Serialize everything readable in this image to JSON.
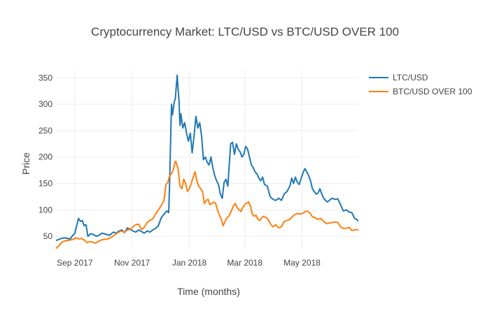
{
  "chart_data": {
    "type": "line",
    "title": "Cryptocurrency Market: LTC/USD vs BTC/USD OVER 100",
    "xlabel": "Time (months)",
    "ylabel": "Price",
    "x_range": [
      "2017-08-12",
      "2018-06-30"
    ],
    "ylim": [
      25,
      365
    ],
    "x_ticks": [
      {
        "date": "2017-09-01",
        "label": "Sep 2017"
      },
      {
        "date": "2017-11-01",
        "label": "Nov 2017"
      },
      {
        "date": "2018-01-01",
        "label": "Jan 2018"
      },
      {
        "date": "2018-03-01",
        "label": "Mar 2018"
      },
      {
        "date": "2018-05-01",
        "label": "May 2018"
      }
    ],
    "y_ticks": [
      50,
      100,
      150,
      200,
      250,
      300,
      350
    ],
    "grid": true,
    "legend_position": "top-right",
    "series": [
      {
        "name": "LTC/USD",
        "color": "#1f77b4",
        "points": [
          [
            "2017-08-12",
            42
          ],
          [
            "2017-08-15",
            44
          ],
          [
            "2017-08-18",
            46
          ],
          [
            "2017-08-21",
            47
          ],
          [
            "2017-08-24",
            46
          ],
          [
            "2017-08-27",
            45
          ],
          [
            "2017-08-30",
            52
          ],
          [
            "2017-09-01",
            55
          ],
          [
            "2017-09-03",
            70
          ],
          [
            "2017-09-05",
            84
          ],
          [
            "2017-09-07",
            78
          ],
          [
            "2017-09-09",
            80
          ],
          [
            "2017-09-11",
            70
          ],
          [
            "2017-09-13",
            72
          ],
          [
            "2017-09-15",
            50
          ],
          [
            "2017-09-18",
            55
          ],
          [
            "2017-09-21",
            53
          ],
          [
            "2017-09-24",
            50
          ],
          [
            "2017-09-27",
            52
          ],
          [
            "2017-09-30",
            56
          ],
          [
            "2017-10-04",
            54
          ],
          [
            "2017-10-08",
            52
          ],
          [
            "2017-10-12",
            58
          ],
          [
            "2017-10-15",
            56
          ],
          [
            "2017-10-18",
            60
          ],
          [
            "2017-10-21",
            62
          ],
          [
            "2017-10-24",
            57
          ],
          [
            "2017-10-27",
            66
          ],
          [
            "2017-10-30",
            63
          ],
          [
            "2017-11-02",
            60
          ],
          [
            "2017-11-05",
            58
          ],
          [
            "2017-11-08",
            62
          ],
          [
            "2017-11-11",
            59
          ],
          [
            "2017-11-14",
            56
          ],
          [
            "2017-11-17",
            60
          ],
          [
            "2017-11-20",
            58
          ],
          [
            "2017-11-23",
            62
          ],
          [
            "2017-11-26",
            65
          ],
          [
            "2017-11-29",
            70
          ],
          [
            "2017-12-02",
            85
          ],
          [
            "2017-12-05",
            92
          ],
          [
            "2017-12-08",
            98
          ],
          [
            "2017-12-10",
            95
          ],
          [
            "2017-12-11",
            150
          ],
          [
            "2017-12-12",
            230
          ],
          [
            "2017-12-13",
            300
          ],
          [
            "2017-12-14",
            280
          ],
          [
            "2017-12-16",
            305
          ],
          [
            "2017-12-17",
            310
          ],
          [
            "2017-12-19",
            355
          ],
          [
            "2017-12-20",
            330
          ],
          [
            "2017-12-21",
            305
          ],
          [
            "2017-12-22",
            260
          ],
          [
            "2017-12-23",
            282
          ],
          [
            "2017-12-25",
            255
          ],
          [
            "2017-12-27",
            265
          ],
          [
            "2017-12-29",
            245
          ],
          [
            "2017-12-31",
            230
          ],
          [
            "2018-01-02",
            245
          ],
          [
            "2018-01-04",
            208
          ],
          [
            "2018-01-06",
            240
          ],
          [
            "2018-01-08",
            277
          ],
          [
            "2018-01-10",
            255
          ],
          [
            "2018-01-12",
            265
          ],
          [
            "2018-01-14",
            240
          ],
          [
            "2018-01-16",
            195
          ],
          [
            "2018-01-18",
            200
          ],
          [
            "2018-01-20",
            190
          ],
          [
            "2018-01-22",
            185
          ],
          [
            "2018-01-24",
            200
          ],
          [
            "2018-01-26",
            180
          ],
          [
            "2018-01-28",
            165
          ],
          [
            "2018-01-30",
            155
          ],
          [
            "2018-02-01",
            148
          ],
          [
            "2018-02-03",
            130
          ],
          [
            "2018-02-05",
            122
          ],
          [
            "2018-02-07",
            152
          ],
          [
            "2018-02-09",
            158
          ],
          [
            "2018-02-11",
            145
          ],
          [
            "2018-02-14",
            225
          ],
          [
            "2018-02-16",
            228
          ],
          [
            "2018-02-18",
            205
          ],
          [
            "2018-02-20",
            225
          ],
          [
            "2018-02-22",
            215
          ],
          [
            "2018-02-24",
            210
          ],
          [
            "2018-02-26",
            200
          ],
          [
            "2018-02-28",
            205
          ],
          [
            "2018-03-02",
            220
          ],
          [
            "2018-03-04",
            215
          ],
          [
            "2018-03-06",
            200
          ],
          [
            "2018-03-08",
            185
          ],
          [
            "2018-03-10",
            180
          ],
          [
            "2018-03-12",
            172
          ],
          [
            "2018-03-14",
            168
          ],
          [
            "2018-03-16",
            160
          ],
          [
            "2018-03-18",
            155
          ],
          [
            "2018-03-20",
            162
          ],
          [
            "2018-03-22",
            148
          ],
          [
            "2018-03-25",
            145
          ],
          [
            "2018-03-28",
            125
          ],
          [
            "2018-03-31",
            120
          ],
          [
            "2018-04-03",
            118
          ],
          [
            "2018-04-06",
            122
          ],
          [
            "2018-04-09",
            118
          ],
          [
            "2018-04-12",
            130
          ],
          [
            "2018-04-15",
            135
          ],
          [
            "2018-04-18",
            145
          ],
          [
            "2018-04-20",
            160
          ],
          [
            "2018-04-22",
            150
          ],
          [
            "2018-04-24",
            162
          ],
          [
            "2018-04-26",
            152
          ],
          [
            "2018-04-28",
            148
          ],
          [
            "2018-04-30",
            160
          ],
          [
            "2018-05-02",
            170
          ],
          [
            "2018-05-04",
            178
          ],
          [
            "2018-05-06",
            172
          ],
          [
            "2018-05-08",
            165
          ],
          [
            "2018-05-10",
            155
          ],
          [
            "2018-05-12",
            140
          ],
          [
            "2018-05-14",
            135
          ],
          [
            "2018-05-16",
            130
          ],
          [
            "2018-05-18",
            132
          ],
          [
            "2018-05-20",
            140
          ],
          [
            "2018-05-22",
            130
          ],
          [
            "2018-05-24",
            122
          ],
          [
            "2018-05-26",
            118
          ],
          [
            "2018-05-28",
            115
          ],
          [
            "2018-05-30",
            118
          ],
          [
            "2018-06-02",
            122
          ],
          [
            "2018-06-05",
            120
          ],
          [
            "2018-06-08",
            121
          ],
          [
            "2018-06-11",
            110
          ],
          [
            "2018-06-14",
            98
          ],
          [
            "2018-06-17",
            100
          ],
          [
            "2018-06-20",
            96
          ],
          [
            "2018-06-23",
            95
          ],
          [
            "2018-06-26",
            84
          ],
          [
            "2018-06-28",
            82
          ],
          [
            "2018-06-30",
            79
          ]
        ]
      },
      {
        "name": "BTC/USD OVER 100",
        "color": "#ff7f0e",
        "points": [
          [
            "2017-08-12",
            27
          ],
          [
            "2017-08-15",
            32
          ],
          [
            "2017-08-18",
            38
          ],
          [
            "2017-08-21",
            41
          ],
          [
            "2017-08-24",
            42
          ],
          [
            "2017-08-27",
            43
          ],
          [
            "2017-08-30",
            44
          ],
          [
            "2017-09-02",
            47
          ],
          [
            "2017-09-05",
            45
          ],
          [
            "2017-09-08",
            46
          ],
          [
            "2017-09-11",
            43
          ],
          [
            "2017-09-14",
            38
          ],
          [
            "2017-09-17",
            40
          ],
          [
            "2017-09-20",
            39
          ],
          [
            "2017-09-23",
            37
          ],
          [
            "2017-09-26",
            40
          ],
          [
            "2017-09-29",
            43
          ],
          [
            "2017-10-02",
            44
          ],
          [
            "2017-10-06",
            45
          ],
          [
            "2017-10-10",
            48
          ],
          [
            "2017-10-13",
            52
          ],
          [
            "2017-10-16",
            56
          ],
          [
            "2017-10-20",
            60
          ],
          [
            "2017-10-24",
            58
          ],
          [
            "2017-10-27",
            62
          ],
          [
            "2017-10-30",
            63
          ],
          [
            "2017-11-02",
            68
          ],
          [
            "2017-11-05",
            72
          ],
          [
            "2017-11-08",
            73
          ],
          [
            "2017-11-11",
            63
          ],
          [
            "2017-11-14",
            67
          ],
          [
            "2017-11-17",
            76
          ],
          [
            "2017-11-20",
            80
          ],
          [
            "2017-11-23",
            83
          ],
          [
            "2017-11-26",
            92
          ],
          [
            "2017-11-29",
            100
          ],
          [
            "2017-12-02",
            108
          ],
          [
            "2017-12-05",
            118
          ],
          [
            "2017-12-07",
            148
          ],
          [
            "2017-12-09",
            152
          ],
          [
            "2017-12-11",
            165
          ],
          [
            "2017-12-13",
            168
          ],
          [
            "2017-12-15",
            177
          ],
          [
            "2017-12-17",
            192
          ],
          [
            "2017-12-18",
            190
          ],
          [
            "2017-12-20",
            178
          ],
          [
            "2017-12-22",
            145
          ],
          [
            "2017-12-24",
            140
          ],
          [
            "2017-12-26",
            158
          ],
          [
            "2017-12-28",
            150
          ],
          [
            "2017-12-30",
            135
          ],
          [
            "2018-01-01",
            140
          ],
          [
            "2018-01-03",
            150
          ],
          [
            "2018-01-05",
            162
          ],
          [
            "2018-01-07",
            172
          ],
          [
            "2018-01-09",
            155
          ],
          [
            "2018-01-11",
            145
          ],
          [
            "2018-01-13",
            140
          ],
          [
            "2018-01-15",
            135
          ],
          [
            "2018-01-17",
            112
          ],
          [
            "2018-01-19",
            118
          ],
          [
            "2018-01-21",
            120
          ],
          [
            "2018-01-23",
            110
          ],
          [
            "2018-01-25",
            112
          ],
          [
            "2018-01-27",
            115
          ],
          [
            "2018-01-29",
            112
          ],
          [
            "2018-01-31",
            100
          ],
          [
            "2018-02-02",
            90
          ],
          [
            "2018-02-04",
            82
          ],
          [
            "2018-02-06",
            70
          ],
          [
            "2018-02-08",
            78
          ],
          [
            "2018-02-10",
            85
          ],
          [
            "2018-02-12",
            88
          ],
          [
            "2018-02-14",
            95
          ],
          [
            "2018-02-17",
            108
          ],
          [
            "2018-02-19",
            112
          ],
          [
            "2018-02-21",
            104
          ],
          [
            "2018-02-23",
            100
          ],
          [
            "2018-02-25",
            97
          ],
          [
            "2018-02-27",
            105
          ],
          [
            "2018-03-01",
            110
          ],
          [
            "2018-03-03",
            113
          ],
          [
            "2018-03-05",
            115
          ],
          [
            "2018-03-07",
            108
          ],
          [
            "2018-03-09",
            92
          ],
          [
            "2018-03-11",
            88
          ],
          [
            "2018-03-13",
            90
          ],
          [
            "2018-03-15",
            82
          ],
          [
            "2018-03-17",
            80
          ],
          [
            "2018-03-19",
            85
          ],
          [
            "2018-03-21",
            88
          ],
          [
            "2018-03-23",
            86
          ],
          [
            "2018-03-25",
            84
          ],
          [
            "2018-03-27",
            78
          ],
          [
            "2018-03-29",
            72
          ],
          [
            "2018-03-31",
            68
          ],
          [
            "2018-04-03",
            72
          ],
          [
            "2018-04-06",
            66
          ],
          [
            "2018-04-09",
            68
          ],
          [
            "2018-04-12",
            78
          ],
          [
            "2018-04-15",
            80
          ],
          [
            "2018-04-18",
            82
          ],
          [
            "2018-04-21",
            88
          ],
          [
            "2018-04-24",
            92
          ],
          [
            "2018-04-27",
            93
          ],
          [
            "2018-04-30",
            92
          ],
          [
            "2018-05-03",
            95
          ],
          [
            "2018-05-06",
            98
          ],
          [
            "2018-05-09",
            95
          ],
          [
            "2018-05-12",
            87
          ],
          [
            "2018-05-15",
            85
          ],
          [
            "2018-05-18",
            82
          ],
          [
            "2018-05-21",
            84
          ],
          [
            "2018-05-24",
            78
          ],
          [
            "2018-05-27",
            74
          ],
          [
            "2018-05-30",
            75
          ],
          [
            "2018-06-02",
            76
          ],
          [
            "2018-06-05",
            77
          ],
          [
            "2018-06-08",
            76
          ],
          [
            "2018-06-11",
            68
          ],
          [
            "2018-06-14",
            65
          ],
          [
            "2018-06-17",
            65
          ],
          [
            "2018-06-20",
            67
          ],
          [
            "2018-06-23",
            61
          ],
          [
            "2018-06-26",
            62
          ],
          [
            "2018-06-28",
            63
          ],
          [
            "2018-06-30",
            61
          ]
        ]
      }
    ]
  }
}
